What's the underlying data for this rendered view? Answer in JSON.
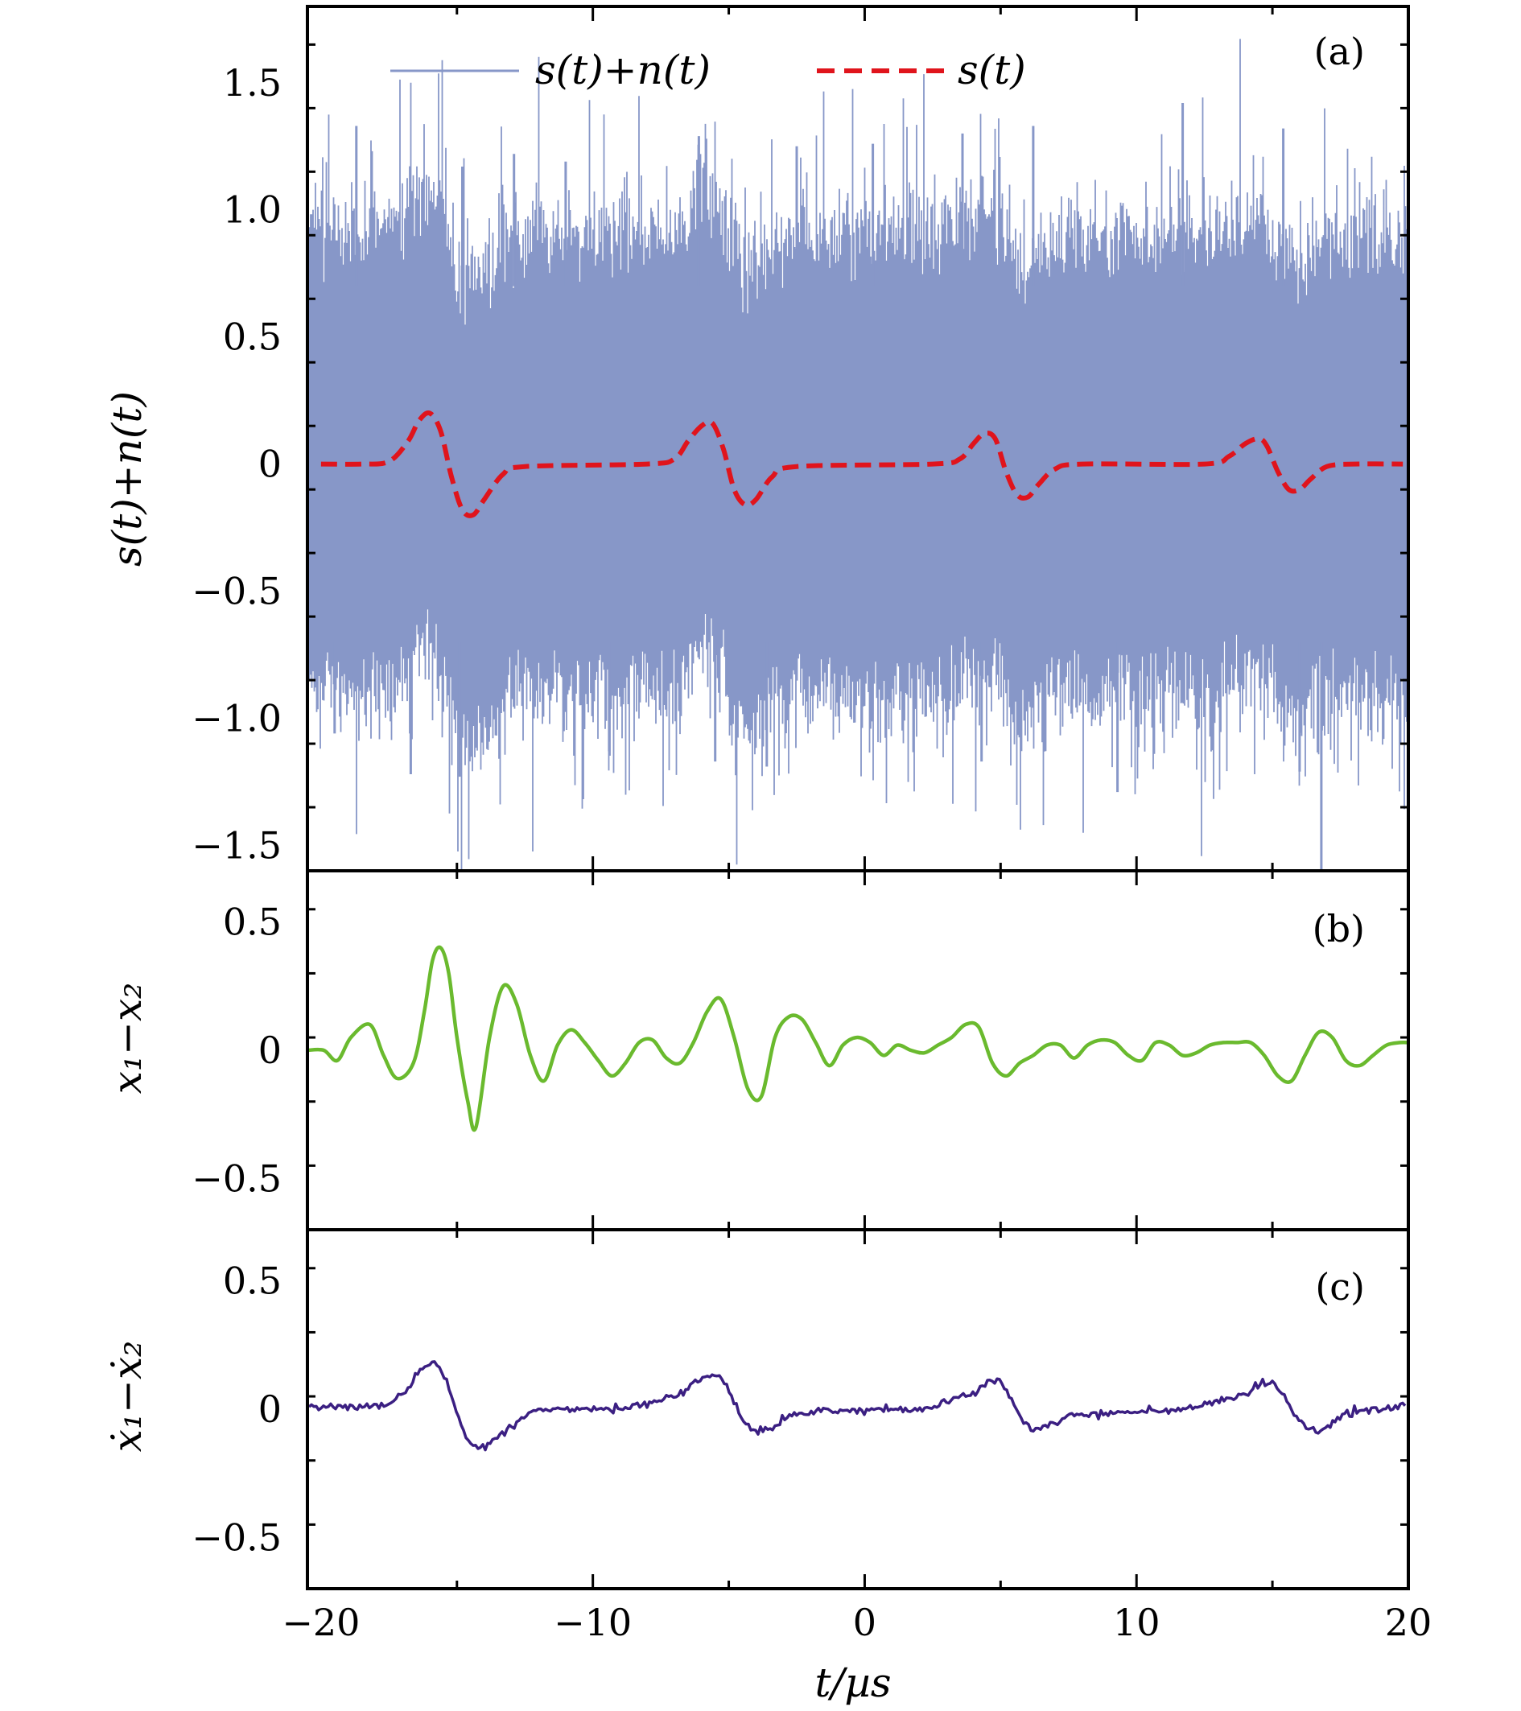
{
  "chart_data": [
    {
      "panel": "(a)",
      "type": "line",
      "ylabel": "s(t)+n(t)",
      "xlim": [
        -20.5,
        20
      ],
      "ylim": [
        -1.6,
        1.8
      ],
      "yticks": [
        {
          "v": 1.5,
          "label": "1.5"
        },
        {
          "v": 1.0,
          "label": "1.0"
        },
        {
          "v": 0.5,
          "label": "0.5"
        },
        {
          "v": 0,
          "label": "0"
        },
        {
          "v": -0.5,
          "label": "−0.5"
        },
        {
          "v": -1.0,
          "label": "−1.0"
        },
        {
          "v": -1.5,
          "label": "−1.5"
        }
      ],
      "legend": {
        "position": "top",
        "entries": [
          "s(t)+n(t)",
          "s(t)"
        ]
      },
      "series": [
        {
          "name": "s(t)+n(t)",
          "color": "#8797c8",
          "style": "noise",
          "envelope": {
            "core": 0.78,
            "peak_max": 1.42,
            "peak_min": -1.6
          },
          "peaks": [
            {
              "x": -18.7,
              "y": 1.33
            },
            {
              "x": -14.8,
              "y": 1.17
            },
            {
              "x": -12.9,
              "y": 1.22
            },
            {
              "x": -11.0,
              "y": 1.19
            },
            {
              "x": -6.1,
              "y": 1.29
            },
            {
              "x": -2.5,
              "y": 1.25
            },
            {
              "x": 0.3,
              "y": 1.26
            },
            {
              "x": 3.6,
              "y": 1.3
            },
            {
              "x": 6.2,
              "y": 1.33
            },
            {
              "x": 11.7,
              "y": 1.42
            },
            {
              "x": 15.4,
              "y": 1.32
            }
          ],
          "troughs": [
            {
              "x": -19.5,
              "y": -1.06
            },
            {
              "x": -16.7,
              "y": -1.22
            },
            {
              "x": -14.9,
              "y": -1.23
            },
            {
              "x": -9.4,
              "y": -1.13
            },
            {
              "x": -5.5,
              "y": -1.17
            },
            {
              "x": -3.6,
              "y": -1.19
            },
            {
              "x": 4.3,
              "y": -1.17
            },
            {
              "x": 9.3,
              "y": -1.29
            },
            {
              "x": 16.0,
              "y": -1.21
            },
            {
              "x": 16.8,
              "y": -1.6
            }
          ]
        },
        {
          "name": "s(t)",
          "color": "#e0141c",
          "style": "dashed",
          "x": [
            -20.0,
            -18.5,
            -17.5,
            -16.8,
            -16.4,
            -16.0,
            -15.6,
            -15.2,
            -14.8,
            -14.4,
            -14.0,
            -13.3,
            -12.5,
            -8.0,
            -7.0,
            -6.5,
            -6.0,
            -5.6,
            -5.2,
            -4.8,
            -4.4,
            -4.0,
            -3.4,
            -2.5,
            2.5,
            3.5,
            4.0,
            4.4,
            4.8,
            5.2,
            5.6,
            6.0,
            6.4,
            7.0,
            8.0,
            12.5,
            13.4,
            14.0,
            14.5,
            14.8,
            15.2,
            15.6,
            16.0,
            16.4,
            17.0,
            18.0,
            19.8
          ],
          "y": [
            0,
            0,
            0.01,
            0.09,
            0.17,
            0.2,
            0.13,
            -0.05,
            -0.18,
            -0.2,
            -0.14,
            -0.04,
            -0.01,
            0,
            0.02,
            0.09,
            0.15,
            0.16,
            0.06,
            -0.1,
            -0.16,
            -0.14,
            -0.05,
            -0.01,
            0,
            0.02,
            0.08,
            0.12,
            0.1,
            -0.03,
            -0.12,
            -0.13,
            -0.08,
            -0.02,
            0,
            0,
            0.03,
            0.08,
            0.1,
            0.07,
            -0.03,
            -0.1,
            -0.1,
            -0.06,
            -0.01,
            0,
            0
          ]
        }
      ]
    },
    {
      "panel": "(b)",
      "type": "line",
      "ylabel": "x₁−x₂",
      "xlim": [
        -20.5,
        20
      ],
      "ylim": [
        -0.7,
        0.7
      ],
      "yticks": [
        {
          "v": 0.5,
          "label": "0.5"
        },
        {
          "v": 0,
          "label": "0"
        },
        {
          "v": -0.5,
          "label": "−0.5"
        }
      ],
      "series": [
        {
          "color": "#6aba2e",
          "x": [
            -20.5,
            -19.9,
            -19.4,
            -18.9,
            -18.2,
            -17.7,
            -17.2,
            -16.6,
            -16.2,
            -15.9,
            -15.6,
            -15.3,
            -15.0,
            -14.6,
            -14.3,
            -13.8,
            -13.3,
            -12.8,
            -12.3,
            -11.8,
            -11.3,
            -10.8,
            -10.3,
            -9.8,
            -9.3,
            -8.8,
            -8.3,
            -7.8,
            -7.3,
            -6.8,
            -6.3,
            -5.8,
            -5.3,
            -4.8,
            -4.3,
            -3.8,
            -3.3,
            -2.8,
            -2.3,
            -1.8,
            -1.3,
            -0.8,
            -0.3,
            0.2,
            0.7,
            1.2,
            1.7,
            2.2,
            2.7,
            3.2,
            3.7,
            4.2,
            4.7,
            5.2,
            5.7,
            6.2,
            6.7,
            7.2,
            7.7,
            8.2,
            8.7,
            9.2,
            9.7,
            10.2,
            10.7,
            11.2,
            11.7,
            12.2,
            12.7,
            13.2,
            13.7,
            14.2,
            14.7,
            15.2,
            15.7,
            16.2,
            16.7,
            17.2,
            17.7,
            18.2,
            18.7,
            19.2,
            19.7,
            20.0
          ],
          "y": [
            0.0,
            0.0,
            -0.04,
            0.05,
            0.1,
            -0.02,
            -0.11,
            -0.05,
            0.15,
            0.35,
            0.4,
            0.3,
            0.05,
            -0.2,
            -0.3,
            0.05,
            0.25,
            0.18,
            -0.02,
            -0.12,
            0.02,
            0.08,
            0.03,
            -0.04,
            -0.1,
            -0.05,
            0.03,
            0.04,
            -0.03,
            -0.05,
            0.03,
            0.15,
            0.2,
            0.05,
            -0.15,
            -0.18,
            0.05,
            0.13,
            0.12,
            0.03,
            -0.06,
            0.02,
            0.05,
            0.03,
            -0.02,
            0.02,
            0.0,
            -0.01,
            0.02,
            0.05,
            0.1,
            0.09,
            -0.05,
            -0.1,
            -0.05,
            -0.02,
            0.02,
            0.02,
            -0.03,
            0.02,
            0.04,
            0.03,
            -0.02,
            -0.04,
            0.03,
            0.02,
            -0.02,
            -0.01,
            0.02,
            0.03,
            0.03,
            0.03,
            -0.02,
            -0.1,
            -0.12,
            -0.02,
            0.07,
            0.05,
            -0.04,
            -0.06,
            -0.02,
            0.02,
            0.03,
            0.03
          ]
        }
      ]
    },
    {
      "panel": "(c)",
      "type": "line",
      "ylabel": "ẋ₁−ẋ₂",
      "xlabel": "t/µs",
      "xlim": [
        -20.5,
        20
      ],
      "ylim": [
        -0.7,
        0.7
      ],
      "xticks": [
        {
          "v": -20,
          "label": "−20"
        },
        {
          "v": -10,
          "label": "−10"
        },
        {
          "v": 0,
          "label": "0"
        },
        {
          "v": 10,
          "label": "10"
        },
        {
          "v": 20,
          "label": "20"
        }
      ],
      "yticks": [
        {
          "v": 0.5,
          "label": "0.5"
        },
        {
          "v": 0,
          "label": "0"
        },
        {
          "v": -0.5,
          "label": "−0.5"
        }
      ],
      "series": [
        {
          "color": "#3b1f82",
          "x": [
            -20.5,
            -18.5,
            -17.5,
            -16.8,
            -16.2,
            -15.8,
            -15.4,
            -15.0,
            -14.6,
            -14.2,
            -13.6,
            -12.8,
            -12.0,
            -9.0,
            -8.0,
            -7.0,
            -6.3,
            -5.6,
            -5.2,
            -4.8,
            -4.4,
            -4.0,
            -3.5,
            -3.0,
            -2.0,
            2.0,
            3.0,
            4.0,
            4.6,
            5.0,
            5.4,
            5.8,
            6.2,
            6.8,
            7.6,
            12.0,
            13.0,
            14.0,
            14.6,
            15.0,
            15.4,
            15.8,
            16.2,
            16.7,
            17.2,
            18.0,
            20.0
          ],
          "y": [
            0.01,
            0.01,
            0.02,
            0.08,
            0.17,
            0.18,
            0.12,
            -0.02,
            -0.12,
            -0.16,
            -0.12,
            -0.05,
            0.0,
            0.0,
            0.02,
            0.05,
            0.1,
            0.14,
            0.12,
            0.03,
            -0.06,
            -0.09,
            -0.08,
            -0.04,
            -0.01,
            0.0,
            0.03,
            0.06,
            0.11,
            0.1,
            0.04,
            -0.04,
            -0.09,
            -0.06,
            -0.02,
            0.0,
            0.03,
            0.06,
            0.1,
            0.1,
            0.06,
            -0.02,
            -0.07,
            -0.09,
            -0.05,
            -0.01,
            0.02
          ]
        }
      ]
    }
  ]
}
